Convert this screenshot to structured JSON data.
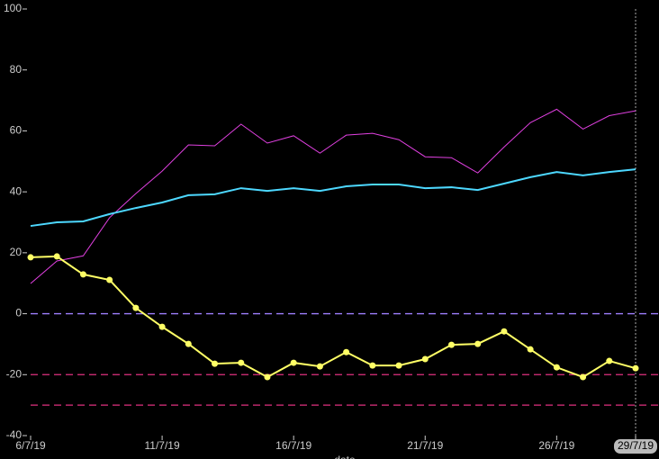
{
  "chart_data": {
    "type": "line",
    "x_label": "date",
    "x": [
      "6/7/19",
      "7/7/19",
      "8/7/19",
      "9/7/19",
      "10/7/19",
      "11/7/19",
      "12/7/19",
      "13/7/19",
      "14/7/19",
      "15/7/19",
      "16/7/19",
      "17/7/19",
      "18/7/19",
      "19/7/19",
      "20/7/19",
      "21/7/19",
      "22/7/19",
      "23/7/19",
      "24/7/19",
      "25/7/19",
      "26/7/19",
      "27/7/19",
      "28/7/19",
      "29/7/19"
    ],
    "xticks": [
      "6/7/19",
      "11/7/19",
      "16/7/19",
      "21/7/19",
      "26/7/19",
      "29/7/19"
    ],
    "cursor": "29/7/19",
    "ylim": [
      -40,
      100
    ],
    "yticks": [
      -40,
      -20,
      0,
      20,
      40,
      60,
      80,
      100
    ],
    "series": [
      {
        "color": "#e040e0",
        "markers": false,
        "width": 1,
        "values": [
          9.9,
          17.3,
          19.0,
          31.5,
          39.4,
          46.8,
          55.4,
          55.1,
          62.2,
          56.0,
          58.4,
          52.7,
          58.6,
          59.2,
          57.1,
          51.5,
          51.2,
          46.2,
          54.7,
          62.7,
          67.1,
          60.6,
          65.0,
          66.6
        ]
      },
      {
        "color": "#4dd8ff",
        "markers": false,
        "width": 2,
        "values": [
          28.8,
          30.0,
          30.3,
          32.7,
          34.7,
          36.5,
          38.9,
          39.2,
          41.2,
          40.3,
          41.2,
          40.3,
          41.8,
          42.4,
          42.4,
          41.2,
          41.5,
          40.6,
          42.7,
          44.8,
          46.5,
          45.4,
          46.5,
          47.4
        ]
      },
      {
        "color": "#ffff66",
        "markers": true,
        "width": 2,
        "values": [
          18.5,
          18.8,
          12.9,
          11.1,
          1.9,
          -4.3,
          -9.9,
          -16.4,
          -16.1,
          -20.8,
          -16.1,
          -17.3,
          -12.6,
          -17.0,
          -17.0,
          -14.9,
          -10.2,
          -9.9,
          -5.8,
          -11.7,
          -17.6,
          -20.8,
          -15.5,
          -17.9
        ]
      }
    ],
    "reference_lines": [
      {
        "value": 0,
        "color": "#9f7fff"
      },
      {
        "value": -20,
        "color": "#e0307f"
      },
      {
        "value": -30,
        "color": "#e0307f"
      }
    ]
  }
}
